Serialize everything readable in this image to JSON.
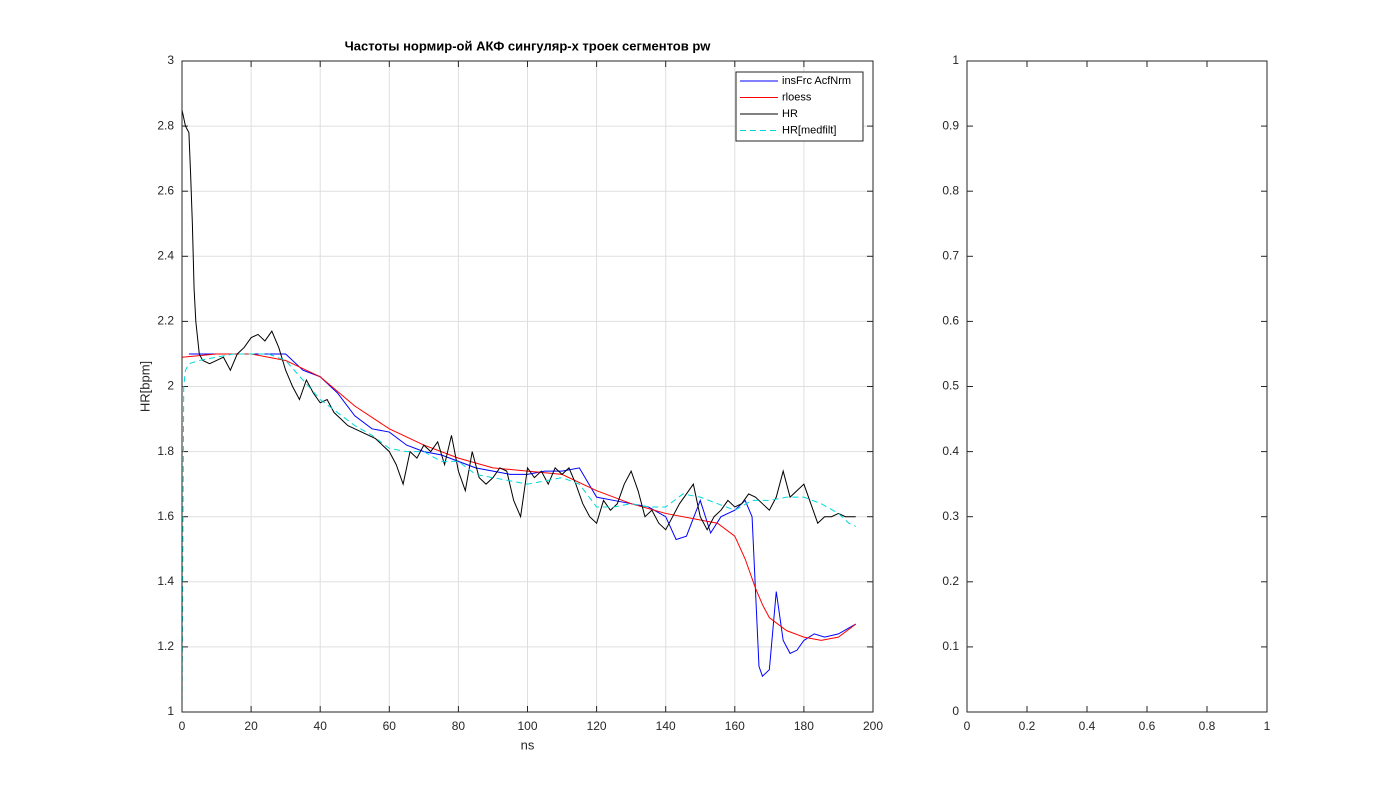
{
  "chart_data": [
    {
      "type": "line",
      "title": "Частоты нормир-ой АКФ сингуляр-х троек сегментов pw",
      "xlabel": "ns",
      "ylabel": "HR[bpm]",
      "xlim": [
        0,
        200
      ],
      "ylim": [
        1,
        3
      ],
      "xticks": [
        0,
        20,
        40,
        60,
        80,
        100,
        120,
        140,
        160,
        180,
        200
      ],
      "yticks": [
        1,
        1.2,
        1.4,
        1.6,
        1.8,
        2,
        2.2,
        2.4,
        2.6,
        2.8,
        3
      ],
      "grid": true,
      "legend": "northeast",
      "series": [
        {
          "name": "insFrc AcfNrm",
          "color": "#0000ff",
          "dash": "solid",
          "x": [
            2,
            5,
            10,
            15,
            20,
            25,
            30,
            35,
            40,
            45,
            50,
            55,
            60,
            65,
            70,
            75,
            80,
            85,
            90,
            95,
            100,
            105,
            110,
            115,
            120,
            125,
            130,
            135,
            140,
            143,
            146,
            150,
            153,
            156,
            160,
            163,
            165,
            167,
            168,
            170,
            172,
            174,
            176,
            178,
            180,
            183,
            186,
            190,
            195
          ],
          "values": [
            2.1,
            2.1,
            2.1,
            2.1,
            2.1,
            2.1,
            2.1,
            2.05,
            2.03,
            1.98,
            1.91,
            1.87,
            1.86,
            1.82,
            1.8,
            1.79,
            1.77,
            1.75,
            1.74,
            1.73,
            1.73,
            1.74,
            1.74,
            1.75,
            1.66,
            1.65,
            1.64,
            1.63,
            1.6,
            1.53,
            1.54,
            1.65,
            1.55,
            1.6,
            1.62,
            1.65,
            1.6,
            1.14,
            1.11,
            1.13,
            1.37,
            1.22,
            1.18,
            1.19,
            1.22,
            1.24,
            1.23,
            1.24,
            1.27
          ]
        },
        {
          "name": "rloess",
          "color": "#ff0000",
          "dash": "solid",
          "x": [
            0,
            10,
            20,
            30,
            40,
            50,
            60,
            70,
            80,
            90,
            100,
            110,
            120,
            130,
            140,
            150,
            155,
            160,
            163,
            166,
            168,
            170,
            175,
            180,
            185,
            190,
            195
          ],
          "values": [
            2.09,
            2.1,
            2.1,
            2.08,
            2.03,
            1.94,
            1.87,
            1.82,
            1.78,
            1.75,
            1.74,
            1.73,
            1.68,
            1.64,
            1.61,
            1.59,
            1.58,
            1.54,
            1.47,
            1.38,
            1.33,
            1.29,
            1.25,
            1.23,
            1.22,
            1.23,
            1.27
          ]
        },
        {
          "name": "HR",
          "color": "#000000",
          "dash": "solid",
          "x": [
            0,
            1,
            2,
            2.5,
            3,
            3.5,
            4,
            5,
            6,
            8,
            10,
            12,
            14,
            16,
            18,
            20,
            22,
            24,
            26,
            28,
            30,
            32,
            34,
            36,
            38,
            40,
            42,
            44,
            46,
            48,
            50,
            52,
            54,
            56,
            58,
            60,
            62,
            64,
            66,
            68,
            70,
            72,
            74,
            76,
            78,
            80,
            82,
            84,
            86,
            88,
            90,
            92,
            94,
            96,
            98,
            100,
            102,
            104,
            106,
            108,
            110,
            112,
            114,
            116,
            118,
            120,
            122,
            124,
            126,
            128,
            130,
            132,
            134,
            136,
            138,
            140,
            142,
            144,
            146,
            148,
            150,
            152,
            154,
            156,
            158,
            160,
            162,
            164,
            166,
            168,
            170,
            172,
            174,
            176,
            178,
            180,
            182,
            184,
            186,
            188,
            190,
            192,
            195
          ],
          "values": [
            2.85,
            2.8,
            2.78,
            2.65,
            2.5,
            2.3,
            2.2,
            2.1,
            2.08,
            2.07,
            2.08,
            2.09,
            2.05,
            2.1,
            2.12,
            2.15,
            2.16,
            2.14,
            2.17,
            2.12,
            2.05,
            2.0,
            1.96,
            2.02,
            1.98,
            1.95,
            1.96,
            1.92,
            1.9,
            1.88,
            1.87,
            1.86,
            1.85,
            1.84,
            1.82,
            1.8,
            1.76,
            1.7,
            1.8,
            1.78,
            1.82,
            1.8,
            1.83,
            1.76,
            1.85,
            1.74,
            1.68,
            1.8,
            1.72,
            1.7,
            1.72,
            1.75,
            1.74,
            1.65,
            1.6,
            1.75,
            1.72,
            1.74,
            1.7,
            1.75,
            1.73,
            1.75,
            1.7,
            1.64,
            1.6,
            1.58,
            1.65,
            1.62,
            1.64,
            1.7,
            1.74,
            1.68,
            1.6,
            1.62,
            1.58,
            1.56,
            1.6,
            1.64,
            1.67,
            1.7,
            1.6,
            1.56,
            1.6,
            1.62,
            1.65,
            1.63,
            1.64,
            1.67,
            1.66,
            1.64,
            1.62,
            1.66,
            1.74,
            1.66,
            1.68,
            1.7,
            1.64,
            1.58,
            1.6,
            1.6,
            1.61,
            1.6,
            1.6
          ]
        },
        {
          "name": "HR[medfilt]",
          "color": "#00d8d8",
          "dash": "dashed",
          "x": [
            0,
            0.5,
            1,
            2,
            5,
            10,
            15,
            20,
            25,
            30,
            35,
            40,
            45,
            50,
            55,
            60,
            65,
            70,
            75,
            80,
            85,
            90,
            95,
            100,
            105,
            110,
            115,
            120,
            125,
            130,
            135,
            140,
            145,
            150,
            155,
            160,
            165,
            170,
            175,
            180,
            185,
            190,
            193,
            195
          ],
          "values": [
            1.0,
            2.0,
            2.05,
            2.07,
            2.08,
            2.09,
            2.1,
            2.1,
            2.1,
            2.08,
            2.02,
            1.96,
            1.92,
            1.88,
            1.85,
            1.81,
            1.8,
            1.8,
            1.77,
            1.77,
            1.73,
            1.72,
            1.71,
            1.7,
            1.71,
            1.72,
            1.7,
            1.63,
            1.63,
            1.64,
            1.63,
            1.63,
            1.67,
            1.66,
            1.64,
            1.62,
            1.65,
            1.65,
            1.66,
            1.66,
            1.64,
            1.61,
            1.58,
            1.57
          ]
        }
      ]
    },
    {
      "type": "line",
      "xlim": [
        0,
        1
      ],
      "ylim": [
        0,
        1
      ],
      "xticks": [
        0,
        0.2,
        0.4,
        0.6,
        0.8,
        1
      ],
      "yticks": [
        0,
        0.1,
        0.2,
        0.3,
        0.4,
        0.5,
        0.6,
        0.7,
        0.8,
        0.9,
        1
      ],
      "grid": false,
      "series": []
    }
  ]
}
